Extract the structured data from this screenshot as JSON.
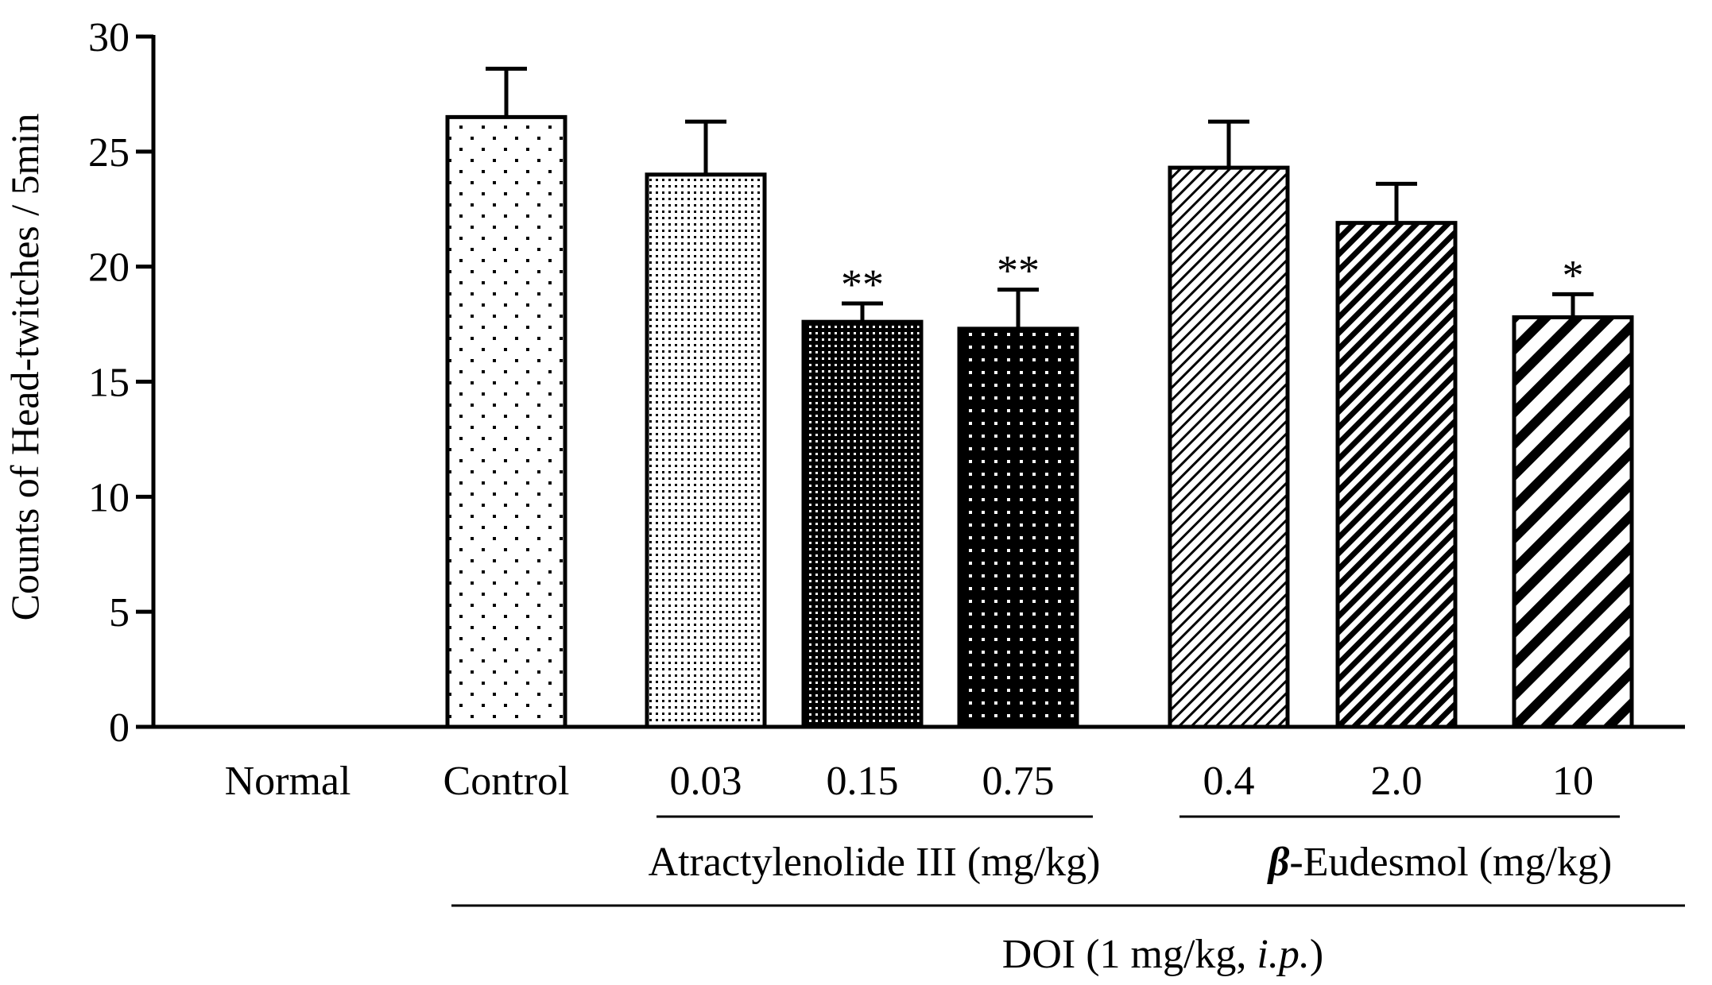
{
  "chart_data": {
    "type": "bar",
    "ylabel": "Counts of Head-twitches / 5min",
    "ylim": [
      0,
      30
    ],
    "yticks": [
      0,
      5,
      10,
      15,
      20,
      25,
      30
    ],
    "ytick_labels": [
      "0",
      "5",
      "10",
      "15",
      "20",
      "25",
      "30"
    ],
    "categories": [
      "Normal",
      "Control",
      "0.03",
      "0.15",
      "0.75",
      "0.4",
      "2.0",
      "10"
    ],
    "values": [
      0,
      26.5,
      24.0,
      17.6,
      17.3,
      24.3,
      21.9,
      17.8
    ],
    "errors": [
      0,
      2.1,
      2.3,
      0.8,
      1.7,
      2.0,
      1.7,
      1.0
    ],
    "significance": [
      "",
      "",
      "",
      "**",
      "**",
      "",
      "",
      "*"
    ],
    "patterns": [
      "none",
      "sparse-dots",
      "fine-dots",
      "dense-dots",
      "black-dots",
      "fine-diag",
      "medium-diag",
      "wide-diag"
    ],
    "groups": [
      {
        "label": "Atractylenolide  III (mg/kg)",
        "categories": [
          "0.03",
          "0.15",
          "0.75"
        ]
      },
      {
        "label_prefix": "β",
        "label_rest": "-Eudesmol (mg/kg)",
        "categories": [
          "0.4",
          "2.0",
          "10"
        ]
      }
    ],
    "treatment": {
      "label_main": "DOI (1 mg/kg, ",
      "label_italic": "i.p.",
      "label_end": ")"
    },
    "grid": false,
    "legend": "none"
  }
}
